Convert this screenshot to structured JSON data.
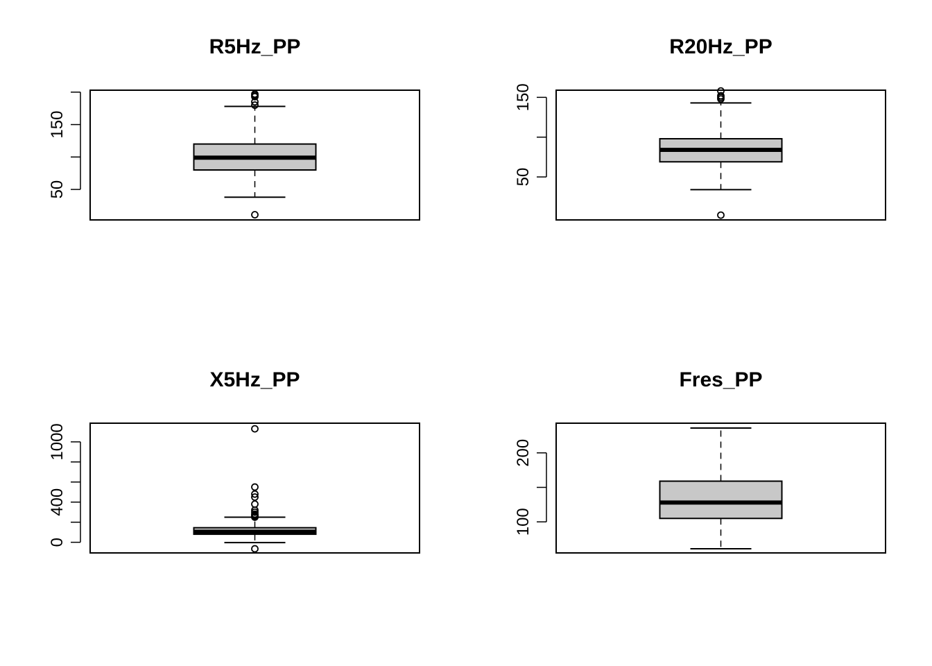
{
  "chart_data": [
    {
      "type": "boxplot",
      "title": "R5Hz_PP",
      "ylim": [
        3,
        203
      ],
      "yticks": [
        50,
        100,
        150,
        200
      ],
      "ytick_labels": [
        "50",
        "",
        "150",
        ""
      ],
      "box": {
        "min": 38,
        "q1": 80,
        "median": 99,
        "q3": 120,
        "max": 178
      },
      "outliers": [
        11,
        180,
        185,
        193,
        195,
        197
      ]
    },
    {
      "type": "boxplot",
      "title": "R20Hz_PP",
      "ylim": [
        -4,
        159
      ],
      "yticks": [
        50,
        100,
        150
      ],
      "ytick_labels": [
        "50",
        "",
        "150"
      ],
      "box": {
        "min": 34,
        "q1": 69,
        "median": 84,
        "q3": 98,
        "max": 143
      },
      "outliers": [
        2,
        148,
        150,
        152,
        158
      ]
    },
    {
      "type": "boxplot",
      "title": "X5Hz_PP",
      "ylim": [
        -106,
        1186
      ],
      "yticks": [
        0,
        200,
        400,
        600,
        800,
        1000
      ],
      "ytick_labels": [
        "0",
        "",
        "400",
        "",
        "",
        "1000"
      ],
      "box": {
        "min": -3,
        "q1": 80,
        "median": 105,
        "q3": 145,
        "max": 250
      },
      "outliers": [
        -65,
        250,
        260,
        270,
        280,
        300,
        320,
        380,
        450,
        480,
        550,
        1130
      ]
    },
    {
      "type": "boxplot",
      "title": "Fres_PP",
      "ylim": [
        55,
        243
      ],
      "yticks": [
        100,
        150,
        200
      ],
      "ytick_labels": [
        "100",
        "",
        "200"
      ],
      "box": {
        "min": 61,
        "q1": 105,
        "median": 128,
        "q3": 159,
        "max": 236
      },
      "outliers": []
    }
  ]
}
